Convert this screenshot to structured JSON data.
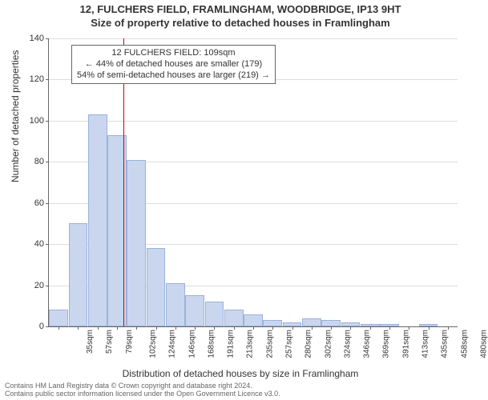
{
  "title": {
    "line1": "12, FULCHERS FIELD, FRAMLINGHAM, WOODBRIDGE, IP13 9HT",
    "line2": "Size of property relative to detached houses in Framlingham",
    "fontsize": 13,
    "fontweight": "bold",
    "color": "#333333"
  },
  "chart": {
    "type": "histogram",
    "background_color": "#ffffff",
    "grid_color": "#dddddd",
    "axis_color": "#666666",
    "bar_fill": "#c9d6ee",
    "bar_border": "#9ab2dc",
    "marker_color": "#d00000",
    "ylim": [
      0,
      140
    ],
    "ytick_step": 20,
    "yticks": [
      0,
      20,
      40,
      60,
      80,
      100,
      120,
      140
    ],
    "y_axis_title": "Number of detached properties",
    "x_axis_title": "Distribution of detached houses by size in Framlingham",
    "label_fontsize": 12,
    "tick_fontsize": 11,
    "x_tick_fontsize": 10,
    "marker_value": 109,
    "categories": [
      "35sqm",
      "57sqm",
      "79sqm",
      "102sqm",
      "124sqm",
      "146sqm",
      "168sqm",
      "191sqm",
      "213sqm",
      "235sqm",
      "257sqm",
      "280sqm",
      "302sqm",
      "324sqm",
      "346sqm",
      "369sqm",
      "391sqm",
      "413sqm",
      "435sqm",
      "458sqm",
      "480sqm"
    ],
    "values": [
      8,
      50,
      103,
      93,
      81,
      38,
      21,
      15,
      12,
      8,
      6,
      3,
      2,
      4,
      3,
      2,
      1,
      1,
      0,
      1,
      0
    ],
    "callout": {
      "line1": "12 FULCHERS FIELD: 109sqm",
      "line2": "← 44% of detached houses are smaller (179)",
      "line3": "54% of semi-detached houses are larger (219) →",
      "border_color": "#666666",
      "bg_color": "#ffffff",
      "fontsize": 11
    }
  },
  "footnote": {
    "line1": "Contains HM Land Registry data © Crown copyright and database right 2024.",
    "line2": "Contains public sector information licensed under the Open Government Licence v3.0.",
    "color": "#666666",
    "fontsize": 9
  }
}
